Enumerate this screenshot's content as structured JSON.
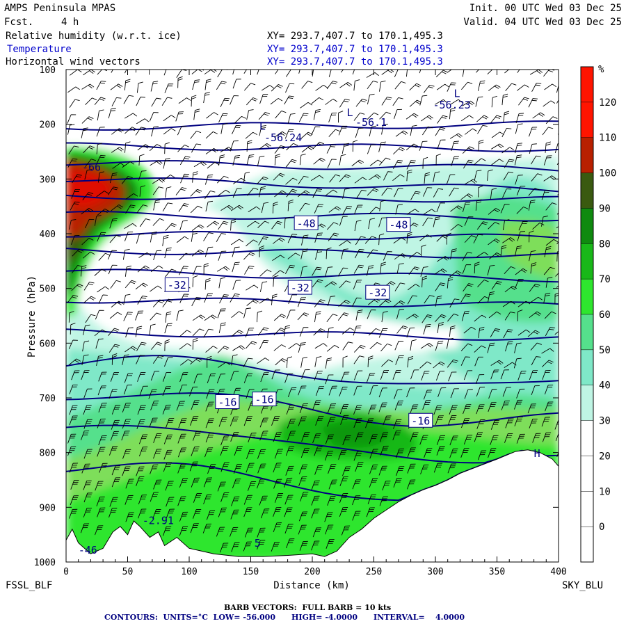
{
  "header": {
    "model": "AMPS Peninsula MPAS",
    "fcst_label": "Fcst.",
    "fcst_value": "4 h",
    "init": "Init. 00 UTC Wed 03 Dec 25",
    "valid": "Valid. 04 UTC Wed 03 Dec 25",
    "fields": [
      {
        "name": "Relative humidity (w.r.t. ice)",
        "xy": "XY= 293.7,407.7 to 170.1,495.3"
      },
      {
        "name": "Temperature",
        "xy": "XY= 293.7,407.7 to 170.1,495.3"
      },
      {
        "name": "Horizontal wind vectors",
        "xy": "XY= 293.7,407.7 to 170.1,495.3"
      }
    ]
  },
  "footer": {
    "barb": "BARB VECTORS:  FULL BARB = 10 kts",
    "contours": "CONTOURS:  UNITS=°C  LOW= -56.000      HIGH= -4.0000      INTERVAL=    4.0000"
  },
  "colors": {
    "temp_contour": "#000080",
    "rh_scale": [
      "#ffffff",
      "#ffffff",
      "#ffffff",
      "#ffffff",
      "#bff5e4",
      "#7fe8c8",
      "#55e08c",
      "#2ee62e",
      "#19b819",
      "#0f8a0f",
      "#3a5a10",
      "#b82000",
      "#ff1400"
    ],
    "terrain": "#ffffff"
  },
  "chart_data": {
    "type": "cross-section",
    "x": {
      "label": "Distance (km)",
      "range": [
        0,
        400
      ],
      "ticks": [
        0,
        50,
        100,
        150,
        200,
        250,
        300,
        350,
        400
      ]
    },
    "y": {
      "label": "Pressure (hPa)",
      "range": [
        1000,
        100
      ],
      "ticks": [
        100,
        200,
        300,
        400,
        500,
        600,
        700,
        800,
        900,
        1000
      ]
    },
    "endpoints": {
      "left": "FSSL_BLF",
      "right": "SKY_BLU"
    },
    "colorbar": {
      "unit": "%",
      "levels": [
        0,
        10,
        20,
        30,
        40,
        50,
        60,
        70,
        80,
        90,
        100,
        110,
        120
      ]
    },
    "temperature_contours_C": [
      -56,
      -52,
      -48,
      -44,
      -40,
      -36,
      -32,
      -28,
      -24,
      -20,
      -16,
      -12,
      -8,
      -4
    ],
    "contour_labels": [
      {
        "text": "-48",
        "x": 195,
        "p": 380
      },
      {
        "text": "-48",
        "x": 270,
        "p": 383
      },
      {
        "text": "-32",
        "x": 90,
        "p": 493
      },
      {
        "text": "-32",
        "x": 190,
        "p": 498
      },
      {
        "text": "-32",
        "x": 253,
        "p": 507
      },
      {
        "text": "-16",
        "x": 131,
        "p": 707
      },
      {
        "text": "-16",
        "x": 161,
        "p": 702
      },
      {
        "text": "-16",
        "x": 288,
        "p": 741
      }
    ],
    "extrema_labels": [
      {
        "text": "L",
        "x": 315,
        "p": 150
      },
      {
        "text": "-56.23",
        "x": 298,
        "p": 171
      },
      {
        "text": "L",
        "x": 228,
        "p": 185
      },
      {
        "text": "-56.1",
        "x": 235,
        "p": 203
      },
      {
        "text": "L",
        "x": 157,
        "p": 210
      },
      {
        "text": "-56.24",
        "x": 161,
        "p": 231
      },
      {
        "text": "-66",
        "x": 13,
        "p": 285
      },
      {
        "text": "-2.91",
        "x": 62,
        "p": 931
      },
      {
        "text": "-46",
        "x": 10,
        "p": 985
      },
      {
        "text": "5",
        "x": 153,
        "p": 972
      },
      {
        "text": "H",
        "x": 380,
        "p": 808
      }
    ],
    "surface_pressure_hPa": [
      [
        0,
        960
      ],
      [
        5,
        940
      ],
      [
        10,
        965
      ],
      [
        20,
        985
      ],
      [
        30,
        975
      ],
      [
        38,
        945
      ],
      [
        44,
        935
      ],
      [
        50,
        950
      ],
      [
        55,
        925
      ],
      [
        60,
        935
      ],
      [
        68,
        955
      ],
      [
        75,
        945
      ],
      [
        80,
        970
      ],
      [
        90,
        955
      ],
      [
        100,
        975
      ],
      [
        110,
        980
      ],
      [
        120,
        985
      ],
      [
        140,
        990
      ],
      [
        160,
        990
      ],
      [
        180,
        988
      ],
      [
        200,
        985
      ],
      [
        210,
        990
      ],
      [
        220,
        980
      ],
      [
        230,
        955
      ],
      [
        240,
        940
      ],
      [
        250,
        920
      ],
      [
        260,
        905
      ],
      [
        270,
        890
      ],
      [
        280,
        878
      ],
      [
        290,
        868
      ],
      [
        300,
        860
      ],
      [
        310,
        850
      ],
      [
        320,
        838
      ],
      [
        335,
        825
      ],
      [
        350,
        812
      ],
      [
        365,
        798
      ],
      [
        375,
        795
      ],
      [
        385,
        800
      ],
      [
        395,
        812
      ],
      [
        400,
        825
      ]
    ]
  }
}
